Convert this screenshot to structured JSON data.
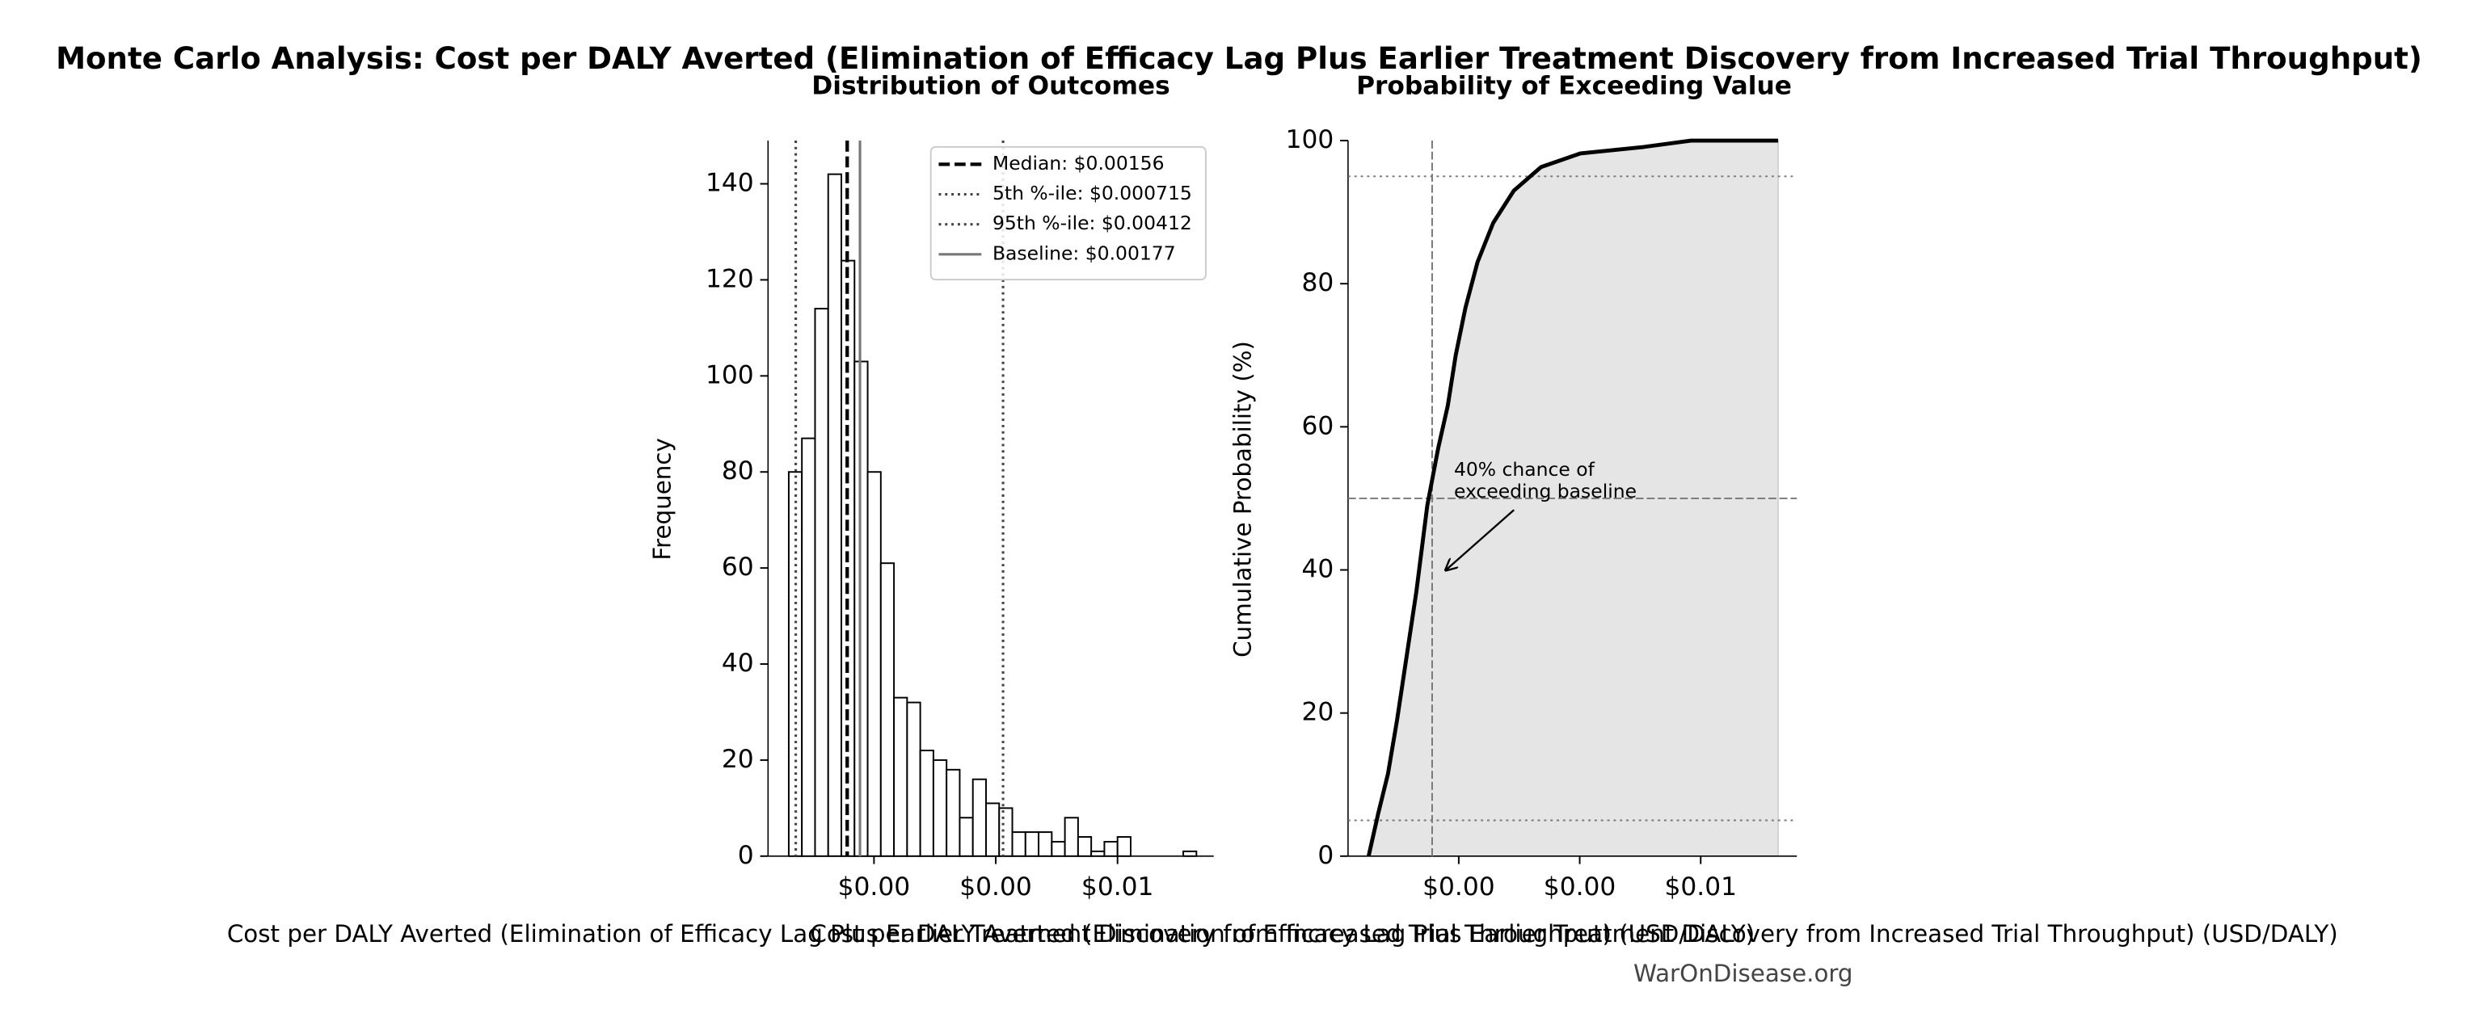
{
  "title": "Monte Carlo Analysis: Cost per DALY Averted (Elimination of Efficacy Lag Plus Earlier Treatment Discovery from Increased Trial Throughput)",
  "watermark": "WarOnDisease.org",
  "chart_data": [
    {
      "type": "histogram",
      "subtitle": "Distribution of Outcomes",
      "x_label": "Cost per DALY Averted (Elimination of Efficacy Lag Plus Earlier Treatment Discovery from Increased Trial Throughput) (USD/DALY)",
      "y_label": "Frequency",
      "bins": [
        0.0006,
        0.000816,
        0.001032,
        0.001248,
        0.001464,
        0.00168,
        0.001896,
        0.002112,
        0.002328,
        0.002544,
        0.00276,
        0.002976,
        0.003192,
        0.003408,
        0.003624,
        0.00384,
        0.004056,
        0.004272,
        0.004488,
        0.004704,
        0.00492,
        0.005136,
        0.005352,
        0.005568,
        0.005784,
        0.006,
        0.006216,
        0.006432,
        0.006648,
        0.006864,
        0.00708,
        0.007296
      ],
      "values": [
        80,
        87,
        114,
        142,
        124,
        103,
        80,
        61,
        33,
        32,
        22,
        20,
        18,
        8,
        16,
        11,
        10,
        5,
        5,
        5,
        3,
        8,
        4,
        1,
        3,
        4,
        0,
        0,
        0,
        0,
        1
      ],
      "color": "#ffffff",
      "edge_color": "#000000",
      "xlim": [
        0.00026,
        0.00758
      ],
      "ylim": [
        0,
        149
      ],
      "xticks": [
        {
          "value": 0.002,
          "label": "$0.00"
        },
        {
          "value": 0.004,
          "label": "$0.00"
        },
        {
          "value": 0.006,
          "label": "$0.01"
        }
      ],
      "yticks": [
        0,
        20,
        40,
        60,
        80,
        100,
        120,
        140
      ],
      "reference_lines": [
        {
          "name": "Median: $0.00156",
          "value": 0.00156,
          "color": "#000000",
          "style": "dashed"
        },
        {
          "name": "5th %-ile: $0.000715",
          "value": 0.000715,
          "color": "#444444",
          "style": "dotted"
        },
        {
          "name": "95th %-ile: $0.00412",
          "value": 0.00412,
          "color": "#444444",
          "style": "dotted"
        },
        {
          "name": "Baseline: $0.00177",
          "value": 0.00177,
          "color": "#777777",
          "style": "solid"
        }
      ],
      "legend": "upper right"
    },
    {
      "type": "cdf",
      "subtitle": "Probability of Exceeding Value",
      "x_label": "Cost per DALY Averted (Elimination of Efficacy Lag Plus Earlier Treatment Discovery from Increased Trial Throughput) (USD/DALY)",
      "y_label": "Cumulative Probability (%)",
      "x": [
        0.00051,
        0.00067,
        0.00083,
        0.00098,
        0.00114,
        0.0013,
        0.00148,
        0.00166,
        0.00182,
        0.00195,
        0.00211,
        0.00231,
        0.00257,
        0.00291,
        0.00336,
        0.00401,
        0.00505,
        0.00584,
        0.00728
      ],
      "values": [
        0,
        6,
        11.5,
        19,
        28,
        37,
        49,
        57,
        63,
        70,
        76.6,
        83,
        88.5,
        93,
        96.3,
        98.2,
        99.1,
        100,
        100
      ],
      "color": "#000000",
      "fill_color": "#e5e5e5",
      "xlim": [
        0.00017,
        0.00759
      ],
      "ylim": [
        0,
        100
      ],
      "xticks": [
        {
          "value": 0.002,
          "label": "$0.00"
        },
        {
          "value": 0.004,
          "label": "$0.00"
        },
        {
          "value": 0.006,
          "label": "$0.01"
        }
      ],
      "yticks": [
        0,
        20,
        40,
        60,
        80,
        100
      ],
      "vlines": [
        {
          "value": 0.00156,
          "color": "#777777",
          "style": "dashed"
        }
      ],
      "hlines": [
        {
          "value": 50,
          "color": "#777777",
          "style": "dashed"
        },
        {
          "value": 5,
          "color": "#777777",
          "style": "dotted"
        },
        {
          "value": 95,
          "color": "#777777",
          "style": "dotted"
        }
      ],
      "annotation": {
        "text": [
          "40% chance of",
          "exceeding baseline"
        ],
        "x": 0.00179,
        "y": 40
      }
    }
  ]
}
